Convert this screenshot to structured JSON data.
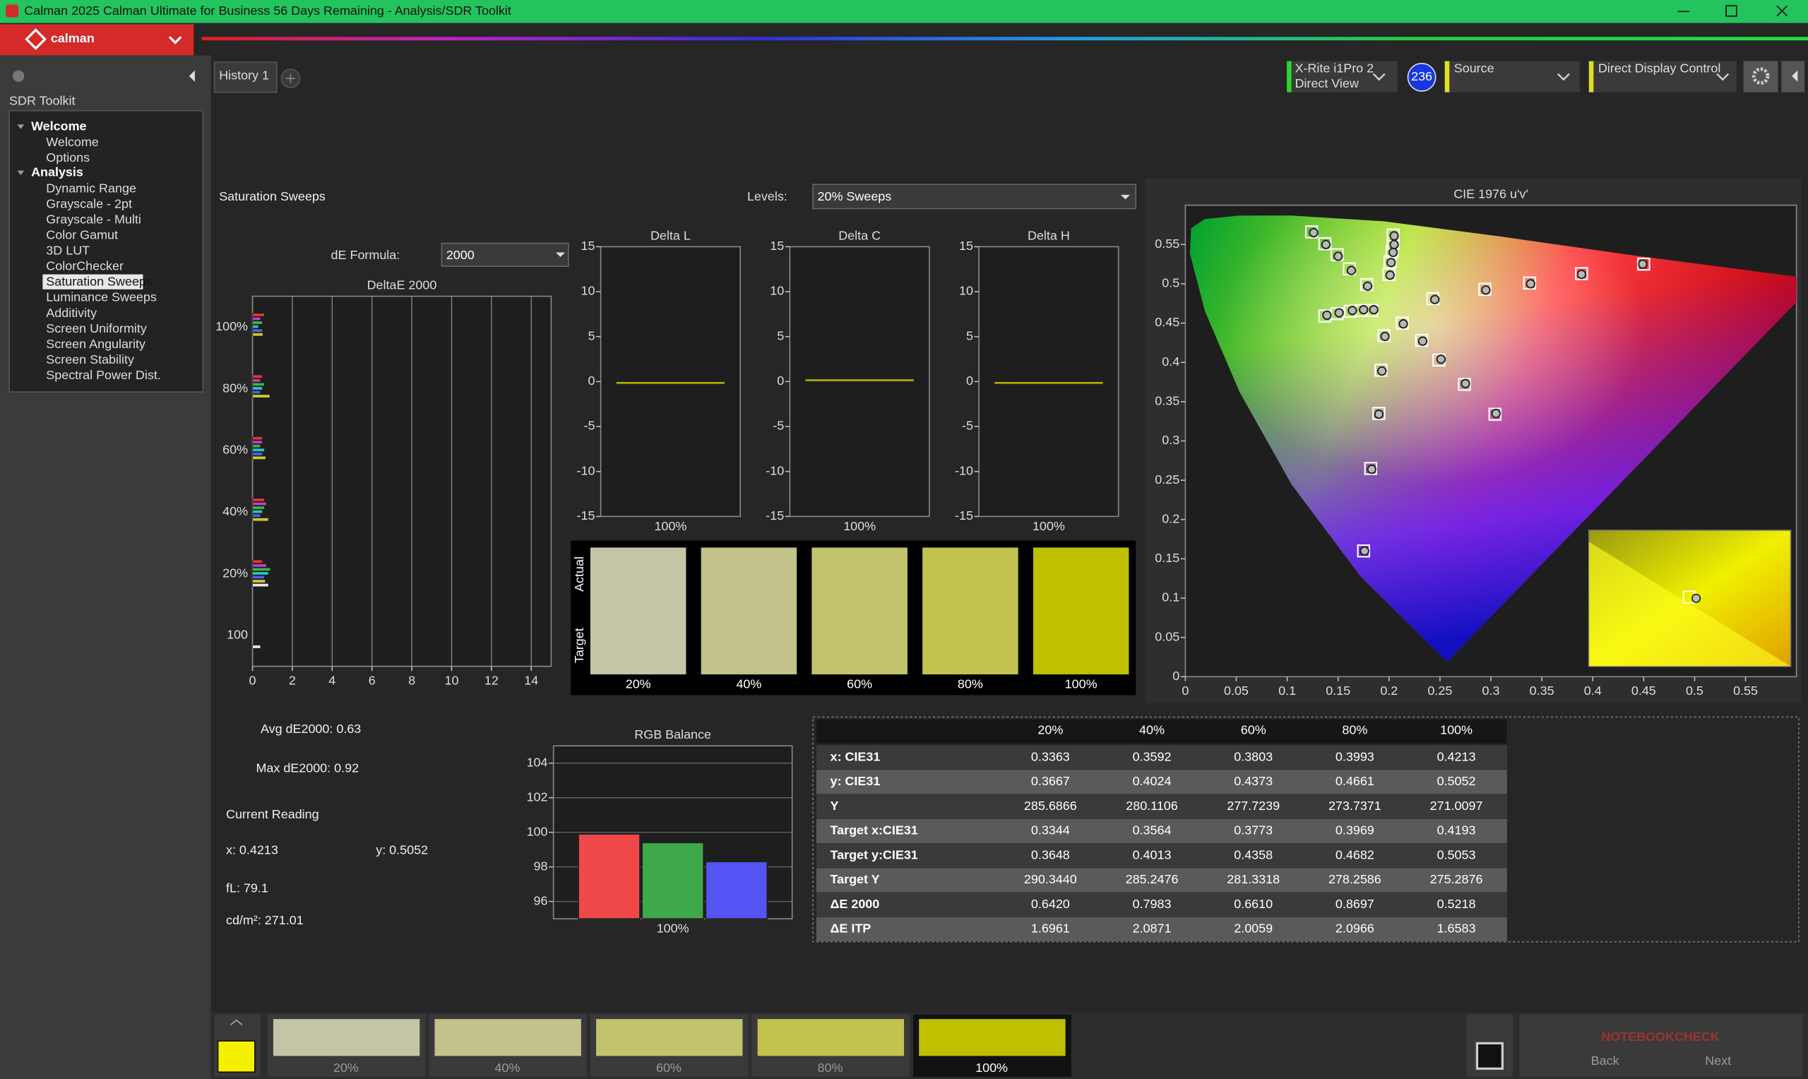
{
  "window": {
    "title": "Calman 2025 Calman Ultimate for Business 56 Days Remaining  - Analysis/SDR Toolkit"
  },
  "logo": "calman",
  "tabs": [
    "History 1"
  ],
  "toolbar": {
    "meter_name": "X-Rite i1Pro 2",
    "meter_mode": "Direct View",
    "badge": "236",
    "source": "Source",
    "display": "Direct Display Control"
  },
  "sidebar": {
    "title": "SDR Toolkit",
    "groups": [
      {
        "label": "Welcome",
        "items": [
          "Welcome",
          "Options"
        ]
      },
      {
        "label": "Analysis",
        "items": [
          "Dynamic Range",
          "Grayscale - 2pt",
          "Grayscale - Multi",
          "Color Gamut",
          "3D LUT",
          "ColorChecker",
          "Saturation Sweeps",
          "Luminance Sweeps",
          "Additivity",
          "Screen Uniformity",
          "Screen Angularity",
          "Screen Stability",
          "Spectral Power Dist."
        ],
        "selected": 6
      }
    ]
  },
  "header": {
    "title": "Saturation Sweeps",
    "levels_label": "Levels:",
    "levels_value": "20% Sweeps",
    "formula_label": "dE Formula:",
    "formula_value": "2000"
  },
  "chart_data": [
    {
      "type": "hbar",
      "title": "DeltaE 2000",
      "categories": [
        "100%",
        "80%",
        "60%",
        "40%",
        "20%",
        "100"
      ],
      "series": [
        {
          "color": "#d83a3a",
          "values": [
            0.6,
            0.5,
            0.5,
            0.6,
            0.5,
            null
          ]
        },
        {
          "color": "#c040c0",
          "values": [
            0.4,
            0.4,
            0.5,
            0.7,
            0.7,
            null
          ]
        },
        {
          "color": "#3fb04a",
          "values": [
            0.5,
            0.6,
            0.4,
            0.6,
            0.9,
            null
          ]
        },
        {
          "color": "#30c0c0",
          "values": [
            0.3,
            0.5,
            0.6,
            0.5,
            0.8,
            null
          ]
        },
        {
          "color": "#5060e0",
          "values": [
            0.5,
            0.4,
            0.5,
            0.4,
            0.6,
            null
          ]
        },
        {
          "color": "#c8c832",
          "values": [
            0.5218,
            0.8697,
            0.661,
            0.7983,
            0.642,
            null
          ]
        },
        {
          "color": "#e8e8e8",
          "values": [
            null,
            null,
            null,
            null,
            0.8,
            0.4
          ]
        }
      ],
      "xlim": [
        0,
        15
      ],
      "xticks": [
        0,
        2,
        4,
        6,
        8,
        10,
        12,
        14
      ],
      "grid": true
    },
    {
      "type": "bar",
      "title": "Delta L",
      "categories": [
        "100%"
      ],
      "values": [
        -0.3
      ],
      "color": "#c8c800",
      "ylim": [
        -15,
        15
      ],
      "yticks": [
        -15,
        -10,
        -5,
        0,
        5,
        10,
        15
      ],
      "grid": false
    },
    {
      "type": "bar",
      "title": "Delta C",
      "categories": [
        "100%"
      ],
      "values": [
        0.3
      ],
      "color": "#c8c800",
      "ylim": [
        -15,
        15
      ],
      "yticks": [
        -15,
        -10,
        -5,
        0,
        5,
        10,
        15
      ],
      "grid": false
    },
    {
      "type": "bar",
      "title": "Delta H",
      "categories": [
        "100%"
      ],
      "values": [
        -0.3
      ],
      "color": "#c8c800",
      "ylim": [
        -15,
        15
      ],
      "yticks": [
        -15,
        -10,
        -5,
        0,
        5,
        10,
        15
      ],
      "grid": false
    },
    {
      "type": "bar",
      "title": "RGB Balance",
      "categories": [
        "100%"
      ],
      "series": [
        {
          "color": "#f04848",
          "values": [
            99.9
          ]
        },
        {
          "color": "#3fa84a",
          "values": [
            99.4
          ]
        },
        {
          "color": "#5555f5",
          "values": [
            98.3
          ]
        }
      ],
      "ylim": [
        95,
        105
      ],
      "yticks": [
        96,
        98,
        100,
        102,
        104
      ],
      "grid": true
    },
    {
      "type": "scatter",
      "title": "CIE 1976 u'v'",
      "series": [
        {
          "marker": "square",
          "color": "#ffffff",
          "x": [
            0.243,
            0.294,
            0.338,
            0.389,
            0.45,
            0.178,
            0.161,
            0.149,
            0.137,
            0.124,
            0.195,
            0.192,
            0.19,
            0.182,
            0.175,
            0.183,
            0.173,
            0.162,
            0.149,
            0.137,
            0.213,
            0.232,
            0.249,
            0.274,
            0.304,
            0.2,
            0.201,
            0.203,
            0.204,
            0.204
          ],
          "y": [
            0.481,
            0.493,
            0.501,
            0.513,
            0.525,
            0.499,
            0.519,
            0.537,
            0.551,
            0.566,
            0.434,
            0.39,
            0.335,
            0.265,
            0.16,
            0.466,
            0.466,
            0.465,
            0.462,
            0.459,
            0.45,
            0.428,
            0.403,
            0.372,
            0.334,
            0.512,
            0.528,
            0.541,
            0.551,
            0.562
          ]
        },
        {
          "marker": "circle",
          "color": "#b8b8b8",
          "x": [
            0.245,
            0.295,
            0.339,
            0.389,
            0.449,
            0.179,
            0.163,
            0.15,
            0.138,
            0.126,
            0.196,
            0.193,
            0.19,
            0.183,
            0.176,
            0.185,
            0.175,
            0.164,
            0.151,
            0.139,
            0.214,
            0.233,
            0.251,
            0.275,
            0.305,
            0.201,
            0.202,
            0.204,
            0.205,
            0.205
          ],
          "y": [
            0.48,
            0.492,
            0.5,
            0.512,
            0.525,
            0.497,
            0.517,
            0.535,
            0.55,
            0.565,
            0.433,
            0.389,
            0.334,
            0.264,
            0.16,
            0.467,
            0.467,
            0.466,
            0.463,
            0.46,
            0.449,
            0.427,
            0.404,
            0.373,
            0.335,
            0.511,
            0.527,
            0.54,
            0.55,
            0.561
          ]
        }
      ],
      "xlim": [
        0,
        0.6
      ],
      "ylim": [
        0,
        0.6
      ],
      "xticks": [
        0,
        0.05,
        0.1,
        0.15,
        0.2,
        0.25,
        0.3,
        0.35,
        0.4,
        0.45,
        0.5,
        0.55
      ],
      "yticks": [
        0,
        0.05,
        0.1,
        0.15,
        0.2,
        0.25,
        0.3,
        0.35,
        0.4,
        0.45,
        0.5,
        0.55
      ],
      "grid": false
    }
  ],
  "swatches": {
    "actual_label": "Actual",
    "target_label": "Target",
    "items": [
      {
        "label": "20%",
        "color": "#c4c5a7"
      },
      {
        "label": "40%",
        "color": "#c2c28a"
      },
      {
        "label": "60%",
        "color": "#c3c26d"
      },
      {
        "label": "80%",
        "color": "#c2c24e"
      },
      {
        "label": "100%",
        "color": "#bfc000"
      }
    ]
  },
  "summary": {
    "avg": "Avg dE2000: 0.63",
    "max": "Max dE2000: 0.92",
    "reading_title": "Current Reading",
    "x": "x: 0.4213",
    "y": "y: 0.5052",
    "fl": "fL: 79.1",
    "cdm2": "cd/m²: 271.01"
  },
  "table": {
    "columns": [
      "20%",
      "40%",
      "60%",
      "80%",
      "100%"
    ],
    "rows": [
      {
        "label": "x: CIE31",
        "cells": [
          "0.3363",
          "0.3592",
          "0.3803",
          "0.3993",
          "0.4213"
        ]
      },
      {
        "label": "y: CIE31",
        "cells": [
          "0.3667",
          "0.4024",
          "0.4373",
          "0.4661",
          "0.5052"
        ]
      },
      {
        "label": "Y",
        "cells": [
          "285.6866",
          "280.1106",
          "277.7239",
          "273.7371",
          "271.0097"
        ]
      },
      {
        "label": "Target x:CIE31",
        "cells": [
          "0.3344",
          "0.3564",
          "0.3773",
          "0.3969",
          "0.4193"
        ]
      },
      {
        "label": "Target y:CIE31",
        "cells": [
          "0.3648",
          "0.4013",
          "0.4358",
          "0.4682",
          "0.5053"
        ]
      },
      {
        "label": "Target Y",
        "cells": [
          "290.3440",
          "285.2476",
          "281.3318",
          "278.2586",
          "275.2876"
        ]
      },
      {
        "label": "ΔE 2000",
        "cells": [
          "0.6420",
          "0.7983",
          "0.6610",
          "0.8697",
          "0.5218"
        ]
      },
      {
        "label": "ΔE ITP",
        "cells": [
          "1.6961",
          "2.0871",
          "2.0059",
          "2.0966",
          "1.6583"
        ]
      }
    ]
  },
  "footer": {
    "back": "Back",
    "next": "Next",
    "watermark": "NOTEBOOKCHECK"
  }
}
